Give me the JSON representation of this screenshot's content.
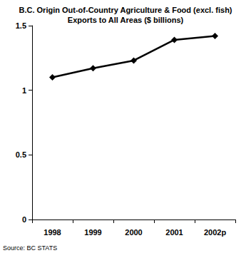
{
  "chart_data": {
    "type": "line",
    "title": "B.C. Origin Out-of-Country Agriculture & Food (excl. fish)\nExports to All Areas ($ billions)",
    "categories": [
      "1998",
      "1999",
      "2000",
      "2001",
      "2002p"
    ],
    "values": [
      1.1,
      1.17,
      1.23,
      1.39,
      1.42
    ],
    "color": "#000000",
    "marker": "diamond",
    "line_style": "solid",
    "ylim": [
      0,
      1.5
    ],
    "yticks": [
      0,
      0.5,
      1,
      1.5
    ],
    "grid": false,
    "annotations": [
      "Source: BC STATS"
    ]
  }
}
